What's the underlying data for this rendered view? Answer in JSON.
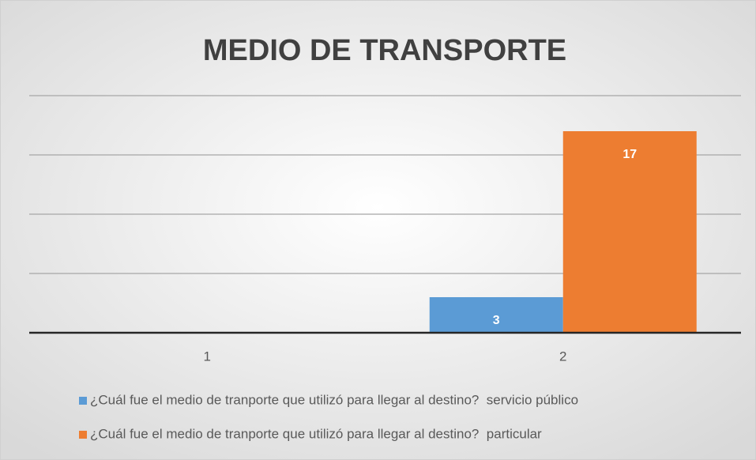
{
  "chart_data": {
    "type": "bar",
    "title": "MEDIO DE TRANSPORTE",
    "categories": [
      "1",
      "2"
    ],
    "series": [
      {
        "name": "¿Cuál fue el medio de tranporte que utilizó para llegar al destino?  servicio público",
        "color": "#5b9bd5",
        "values": [
          null,
          3
        ]
      },
      {
        "name": "¿Cuál fue el medio de tranporte que utilizó para llegar al destino?  particular",
        "color": "#ed7d31",
        "values": [
          null,
          17
        ]
      }
    ],
    "ylim": [
      0,
      20
    ],
    "yticks": [
      0,
      5,
      10,
      15,
      20
    ],
    "grid": true
  }
}
